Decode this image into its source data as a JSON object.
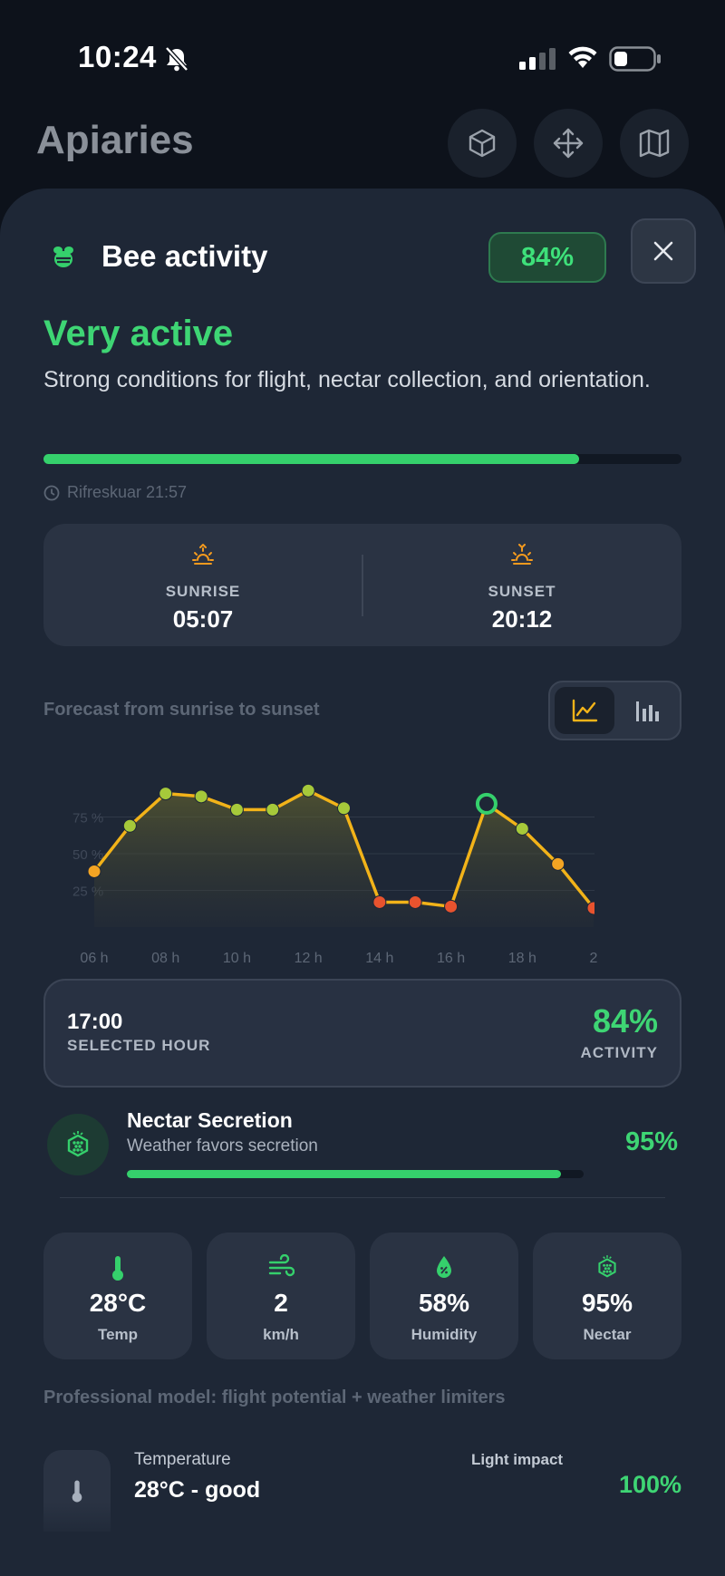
{
  "status_bar": {
    "time": "10:24"
  },
  "header": {
    "title": "Apiaries"
  },
  "sheet": {
    "title": "Bee activity",
    "badge": "84%",
    "status_heading": "Very active",
    "status_description": "Strong conditions for flight, nectar collection, and orientation.",
    "activity_fraction": 0.84,
    "refreshed": "Rifreskuar 21:57"
  },
  "sun": {
    "sunrise_label": "SUNRISE",
    "sunrise": "05:07",
    "sunset_label": "SUNSET",
    "sunset": "20:12"
  },
  "forecast": {
    "title": "Forecast from sunrise to sunset"
  },
  "chart_data": {
    "type": "line",
    "x": [
      6,
      7,
      8,
      9,
      10,
      11,
      12,
      13,
      14,
      15,
      16,
      17,
      18,
      19,
      20
    ],
    "values": [
      38,
      69,
      91,
      89,
      80,
      80,
      93,
      81,
      17,
      17,
      14,
      84,
      67,
      43,
      13
    ],
    "point_colors": [
      "#f3a423",
      "#a6c93a",
      "#a6c93a",
      "#a6c93a",
      "#a6c93a",
      "#a6c93a",
      "#a6c93a",
      "#a6c93a",
      "#e8532e",
      "#e8532e",
      "#e8532e",
      "#35d06c",
      "#a6c93a",
      "#f3a423",
      "#e8532e"
    ],
    "selected_index": 11,
    "y_ticks": [
      "75 %",
      "50 %",
      "25 %"
    ],
    "y_tick_values": [
      75,
      50,
      25
    ],
    "x_ticks": [
      "06 h",
      "08 h",
      "10 h",
      "12 h",
      "14 h",
      "16 h",
      "18 h",
      "2"
    ],
    "x_tick_values": [
      6,
      8,
      10,
      12,
      14,
      16,
      18,
      20
    ],
    "ylim": [
      0,
      100
    ],
    "grid": true,
    "line_color": "#f2b319"
  },
  "selected": {
    "time": "17:00",
    "label": "SELECTED HOUR",
    "value": "84%",
    "value_label": "ACTIVITY"
  },
  "nectar": {
    "title": "Nectar Secretion",
    "subtitle": "Weather favors secretion",
    "value": "95%",
    "fraction": 0.95
  },
  "metrics": [
    {
      "value": "28°C",
      "label": "Temp",
      "icon": "thermometer-icon"
    },
    {
      "value": "2",
      "label": "km/h",
      "icon": "wind-icon"
    },
    {
      "value": "58%",
      "label": "Humidity",
      "icon": "humidity-drop-icon"
    },
    {
      "value": "95%",
      "label": "Nectar",
      "icon": "honeycomb-icon"
    }
  ],
  "model": {
    "title": "Professional model: flight potential + weather limiters",
    "temperature_label": "Temperature",
    "temperature_value": "28°C - good",
    "light_label": "Light impact",
    "light_value": "100%"
  },
  "colors": {
    "accent_green": "#3ed574",
    "sun_orange": "#f39a1e",
    "sheet_bg": "#1e2736"
  }
}
